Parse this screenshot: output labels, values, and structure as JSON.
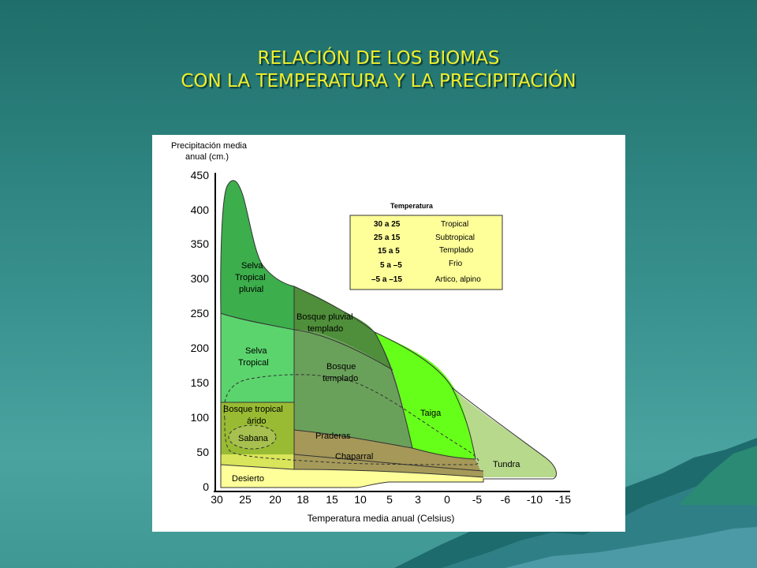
{
  "slide": {
    "title_line1": "RELACIÓN DE LOS BIOMAS",
    "title_line2": "CON LA TEMPERATURA Y LA PRECIPITACIÓN"
  },
  "colors": {
    "title": "#f0ee2a",
    "background_top": "#1f6e6b",
    "background_bottom": "#4aa39f",
    "legend_fill": "#ffff99"
  },
  "figure": {
    "y_axis": {
      "label_line1": "Precipitación media",
      "label_line2": "anual (cm.)",
      "ticks": [
        "450",
        "400",
        "350",
        "300",
        "250",
        "200",
        "150",
        "100",
        "50",
        "0"
      ]
    },
    "x_axis": {
      "label": "Temperatura media anual (Celsius)",
      "ticks": [
        "30",
        "25",
        "20",
        "18",
        "15",
        "10",
        "5",
        "3",
        "0",
        "-5",
        "-6",
        "-10",
        "-15"
      ]
    },
    "biomes": {
      "selva_pluvial": [
        "Selva",
        "Tropical",
        "pluvial"
      ],
      "selva_tropical": [
        "Selva",
        "Tropical"
      ],
      "bosque_pluvial": [
        "Bosque pluvial",
        "templado"
      ],
      "bosque_templado": [
        "Bosque",
        "templado"
      ],
      "bosque_tropical_arido": [
        "Bosque tropical",
        "árido"
      ],
      "sabana": "Sabana",
      "praderas": "Praderas",
      "taiga": "Taiga",
      "chaparral": "Chaparral",
      "tundra": "Tundra",
      "desierto": "Desierto"
    },
    "legend": {
      "title": "Temperatura",
      "rows": [
        {
          "range": "30 a 25",
          "name": "Tropical"
        },
        {
          "range": "25 a 15",
          "name": "Subtropical"
        },
        {
          "range": "15 a  5",
          "name": "Templado"
        },
        {
          "range": "5 a –5",
          "name": "Frio"
        },
        {
          "range": "–5 a –15",
          "name": "Artico, alpino"
        }
      ]
    }
  }
}
